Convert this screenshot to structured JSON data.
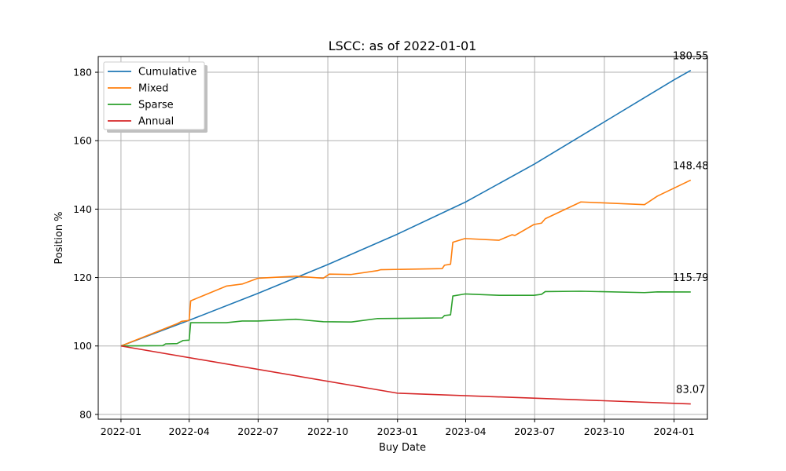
{
  "chart_data": {
    "type": "line",
    "title": "LSCC: as of 2022-01-01",
    "xlabel": "Buy Date",
    "ylabel": "Position %",
    "xlim": [
      "2021-12-02",
      "2024-02-14"
    ],
    "ylim": [
      78.6,
      184.6
    ],
    "x_ticks": [
      "2022-01-01",
      "2022-04-01",
      "2022-07-01",
      "2022-10-01",
      "2023-01-01",
      "2023-04-01",
      "2023-07-01",
      "2023-10-01",
      "2024-01-01"
    ],
    "x_tick_labels": [
      "2022-01",
      "2022-04",
      "2022-07",
      "2022-10",
      "2023-01",
      "2023-04",
      "2023-07",
      "2023-10",
      "2024-01"
    ],
    "y_ticks": [
      80,
      100,
      120,
      140,
      160,
      180
    ],
    "y_tick_labels": [
      "80",
      "100",
      "120",
      "140",
      "160",
      "180"
    ],
    "grid": true,
    "legend_position": "upper-left",
    "series": [
      {
        "name": "Cumulative",
        "color": "#1f77b4",
        "points": [
          [
            "2022-01-01",
            100.0
          ],
          [
            "2022-04-01",
            107.5
          ],
          [
            "2022-07-01",
            115.4
          ],
          [
            "2022-10-01",
            123.8
          ],
          [
            "2023-01-01",
            132.7
          ],
          [
            "2023-04-01",
            142.1
          ],
          [
            "2023-07-01",
            153.2
          ],
          [
            "2023-10-01",
            165.5
          ],
          [
            "2024-01-01",
            177.8
          ],
          [
            "2024-01-23",
            180.55
          ]
        ],
        "end_label": "180.55"
      },
      {
        "name": "Mixed",
        "color": "#ff7f0e",
        "points": [
          [
            "2022-01-01",
            100.0
          ],
          [
            "2022-03-16",
            106.5
          ],
          [
            "2022-03-22",
            107.2
          ],
          [
            "2022-03-30",
            107.4
          ],
          [
            "2022-04-01",
            107.6
          ],
          [
            "2022-04-03",
            113.2
          ],
          [
            "2022-05-20",
            117.5
          ],
          [
            "2022-06-10",
            118.1
          ],
          [
            "2022-07-01",
            119.8
          ],
          [
            "2022-08-20",
            120.4
          ],
          [
            "2022-09-25",
            119.8
          ],
          [
            "2022-10-03",
            121.0
          ],
          [
            "2022-11-01",
            120.9
          ],
          [
            "2022-12-05",
            122.0
          ],
          [
            "2022-12-10",
            122.3
          ],
          [
            "2023-03-01",
            122.6
          ],
          [
            "2023-03-04",
            123.6
          ],
          [
            "2023-03-12",
            123.9
          ],
          [
            "2023-03-15",
            130.3
          ],
          [
            "2023-03-31",
            131.4
          ],
          [
            "2023-05-15",
            130.9
          ],
          [
            "2023-06-01",
            132.5
          ],
          [
            "2023-06-05",
            132.3
          ],
          [
            "2023-06-30",
            135.5
          ],
          [
            "2023-07-10",
            135.9
          ],
          [
            "2023-07-15",
            137.2
          ],
          [
            "2023-08-31",
            142.1
          ],
          [
            "2023-11-23",
            141.3
          ],
          [
            "2023-12-10",
            143.8
          ],
          [
            "2024-01-23",
            148.48
          ]
        ],
        "end_label": "148.48"
      },
      {
        "name": "Sparse",
        "color": "#2ca02c",
        "points": [
          [
            "2022-01-01",
            100.0
          ],
          [
            "2022-02-25",
            100.1
          ],
          [
            "2022-03-01",
            100.6
          ],
          [
            "2022-03-16",
            100.7
          ],
          [
            "2022-03-24",
            101.6
          ],
          [
            "2022-04-01",
            101.7
          ],
          [
            "2022-04-03",
            106.8
          ],
          [
            "2022-05-20",
            106.8
          ],
          [
            "2022-06-10",
            107.3
          ],
          [
            "2022-07-01",
            107.3
          ],
          [
            "2022-08-20",
            107.8
          ],
          [
            "2022-09-25",
            107.1
          ],
          [
            "2022-11-01",
            107.0
          ],
          [
            "2022-12-05",
            108.0
          ],
          [
            "2023-03-01",
            108.2
          ],
          [
            "2023-03-04",
            108.9
          ],
          [
            "2023-03-12",
            109.1
          ],
          [
            "2023-03-15",
            114.6
          ],
          [
            "2023-03-31",
            115.2
          ],
          [
            "2023-05-15",
            114.8
          ],
          [
            "2023-06-30",
            114.8
          ],
          [
            "2023-07-10",
            115.1
          ],
          [
            "2023-07-15",
            115.9
          ],
          [
            "2023-08-31",
            116.0
          ],
          [
            "2023-11-23",
            115.6
          ],
          [
            "2023-12-10",
            115.8
          ],
          [
            "2024-01-23",
            115.79
          ]
        ],
        "end_label": "115.79"
      },
      {
        "name": "Annual",
        "color": "#d62728",
        "points": [
          [
            "2022-01-01",
            100.0
          ],
          [
            "2023-01-01",
            86.2
          ],
          [
            "2024-01-23",
            83.07
          ]
        ],
        "end_label": "83.07"
      }
    ]
  }
}
